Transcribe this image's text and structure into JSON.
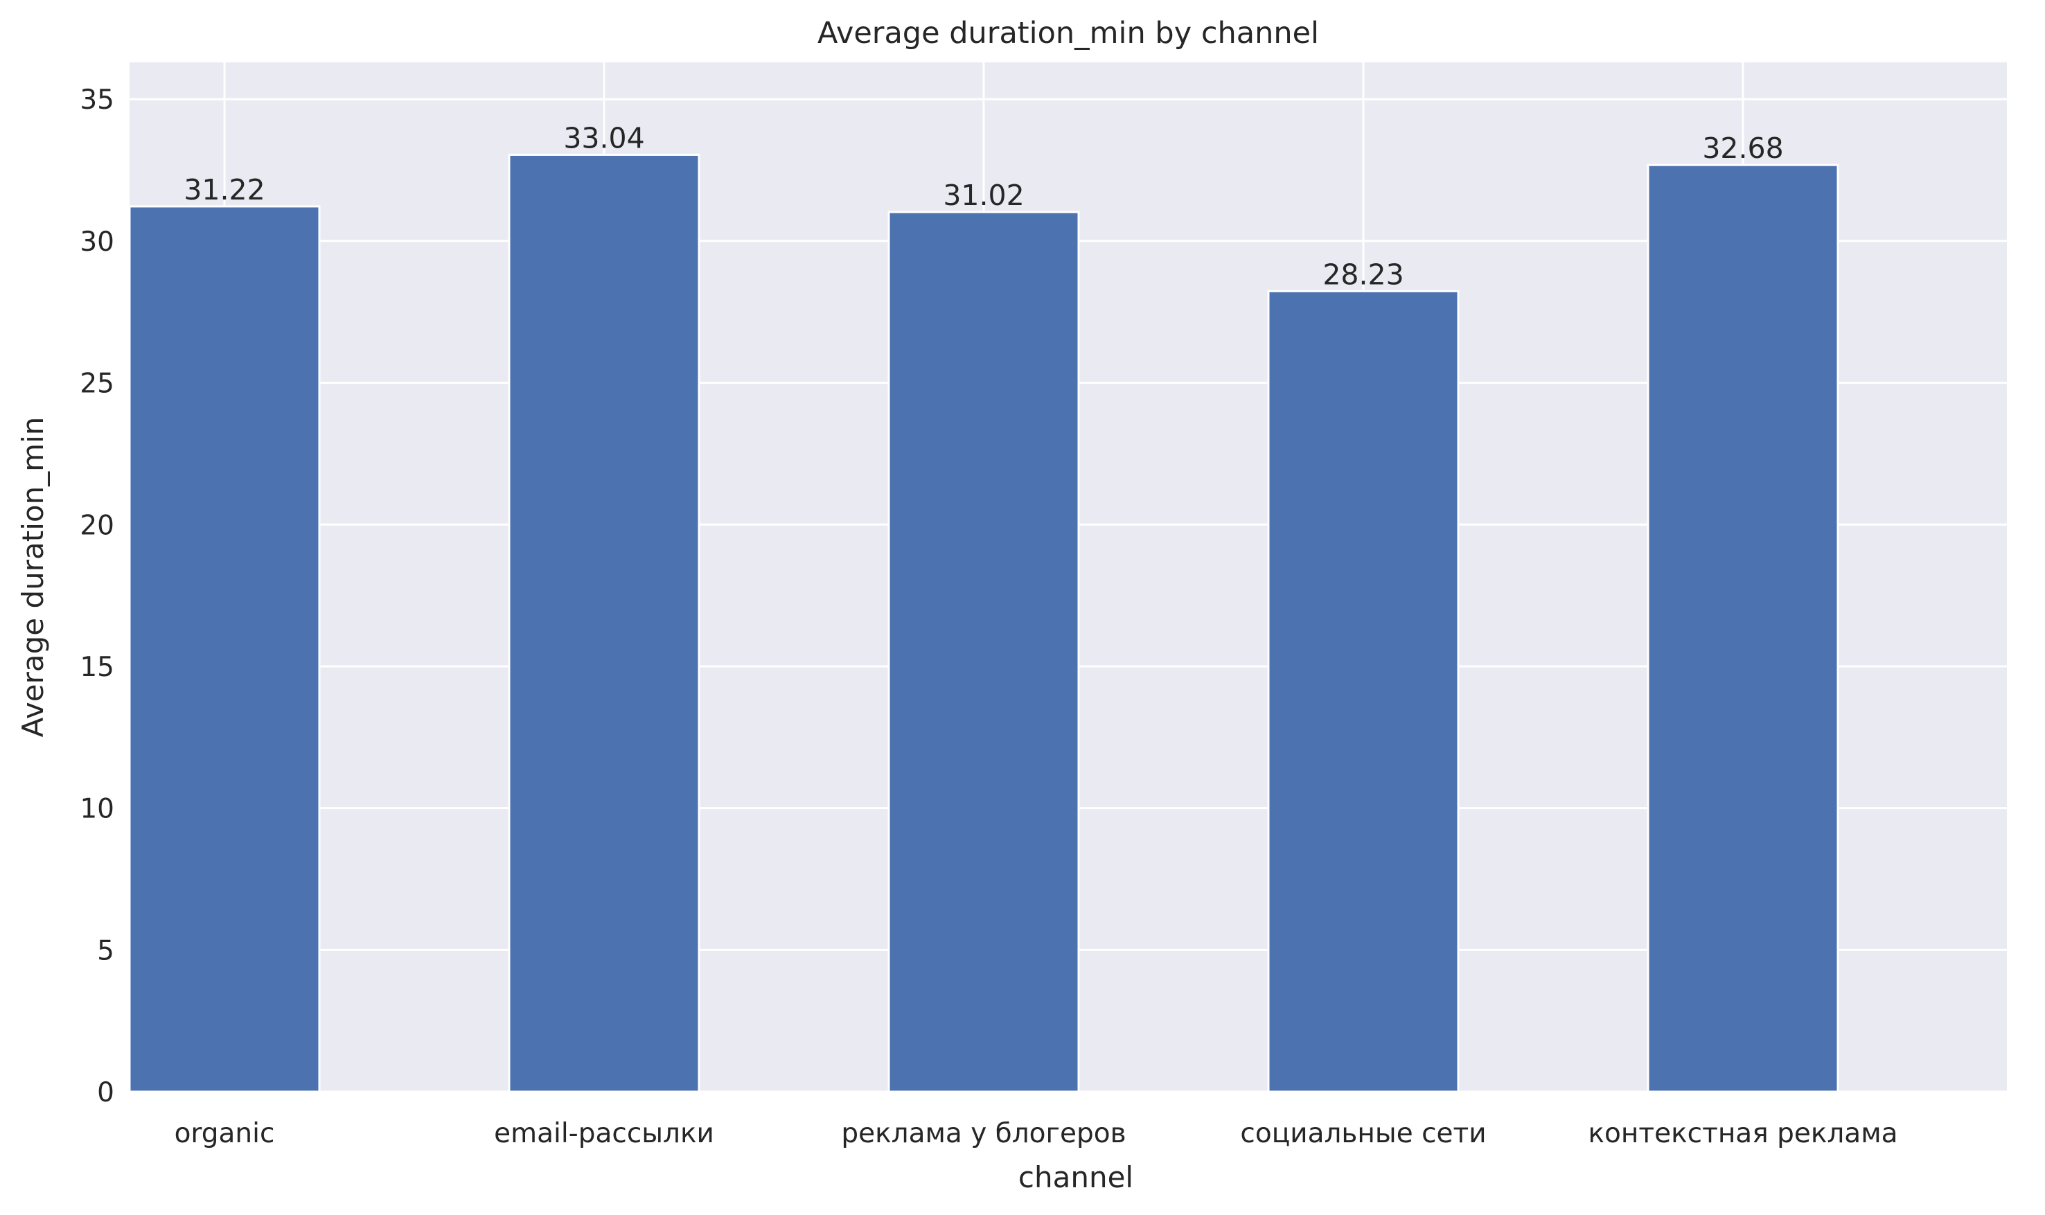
{
  "chart_data": {
    "type": "bar",
    "title": "Average duration_min by channel",
    "xlabel": "channel",
    "ylabel": "Average duration_min",
    "categories": [
      "organic",
      "email-рассылки",
      "реклама у блогеров",
      "социальные сети",
      "контекстная реклама"
    ],
    "values": [
      31.22,
      33.04,
      31.02,
      28.23,
      32.68
    ],
    "value_labels": [
      "31.22",
      "33.04",
      "31.02",
      "28.23",
      "32.68"
    ],
    "ylim": [
      0,
      36.3
    ],
    "yticks": [
      0,
      5,
      10,
      15,
      20,
      25,
      30,
      35
    ],
    "grid": true,
    "legend": "none",
    "colors": {
      "bar": "#4c72b0",
      "plot_background": "#eaeaf2",
      "grid": "#ffffff",
      "text": "#262626"
    }
  }
}
